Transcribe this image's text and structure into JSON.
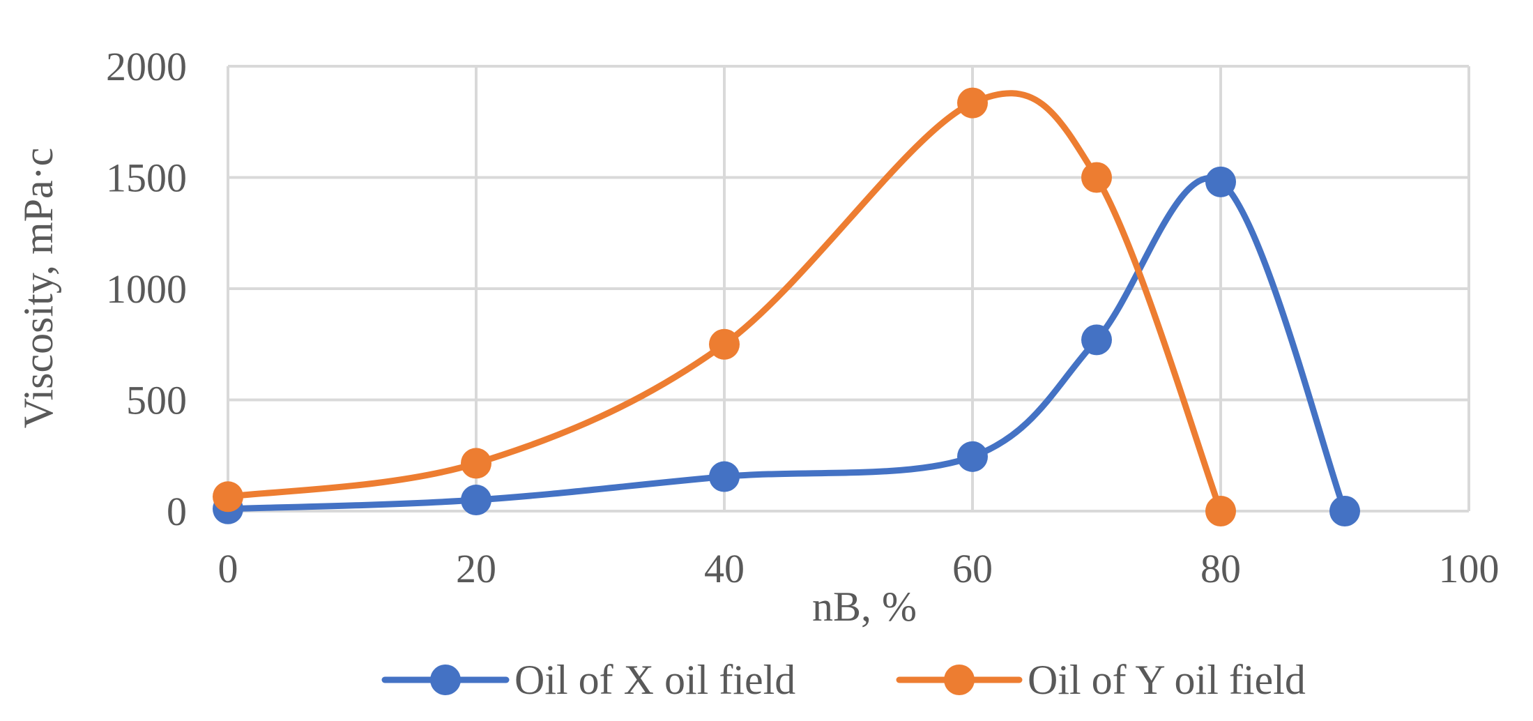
{
  "chart_data": {
    "type": "line",
    "smooth": true,
    "title": "",
    "xlabel": "nB, %",
    "ylabel": "Viscosity, mPa·c",
    "xlim": [
      0,
      100
    ],
    "ylim": [
      0,
      2000
    ],
    "x_ticks": [
      "0",
      "20",
      "40",
      "60",
      "80",
      "100"
    ],
    "y_ticks": [
      "0",
      "500",
      "1000",
      "1500",
      "2000"
    ],
    "x_tick_values": [
      0,
      20,
      40,
      60,
      80,
      100
    ],
    "y_tick_values": [
      0,
      500,
      1000,
      1500,
      2000
    ],
    "grid": true,
    "legend_position": "bottom",
    "series": [
      {
        "name": "Oil of X oil field",
        "color": "#4472C4",
        "x": [
          0,
          20,
          40,
          60,
          70,
          80,
          90
        ],
        "y": [
          10,
          50,
          155,
          245,
          770,
          1480,
          0
        ]
      },
      {
        "name": "Oil of Y oil field",
        "color": "#ED7D31",
        "x": [
          0,
          20,
          40,
          60,
          70,
          80
        ],
        "y": [
          65,
          215,
          750,
          1835,
          1500,
          0
        ]
      }
    ]
  }
}
